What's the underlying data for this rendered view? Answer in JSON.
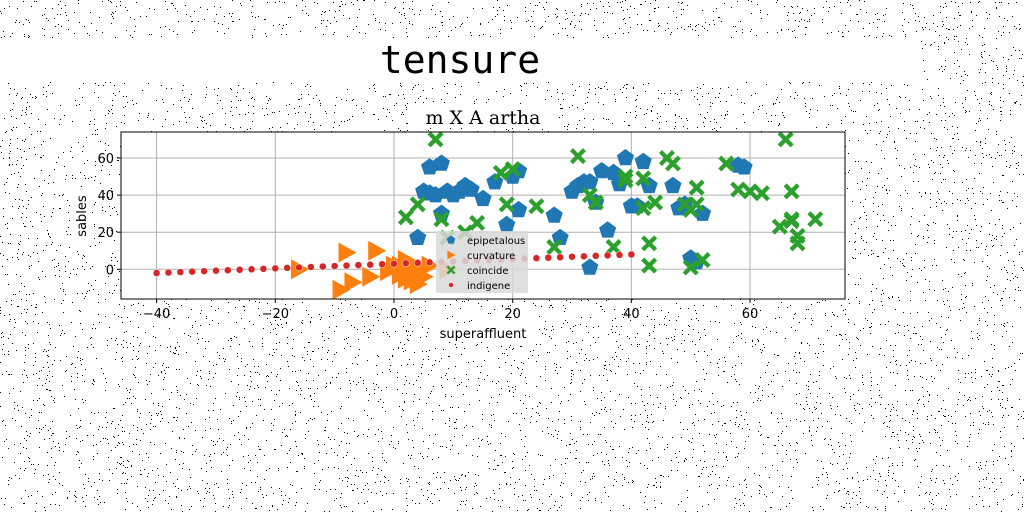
{
  "figure": {
    "suptitle": "tensure"
  },
  "colors": {
    "background": "#ffffff",
    "grid": "#b0b0b0",
    "series": [
      "#1f77b4",
      "#ff7f0e",
      "#2ca02c",
      "#d62728"
    ]
  },
  "chart_data": {
    "type": "scatter",
    "title": "m X A artha",
    "xlabel": "superaffluent",
    "ylabel": "sables",
    "xlim": [
      -46,
      76
    ],
    "ylim": [
      -16,
      74
    ],
    "xticks": [
      -40,
      -20,
      0,
      20,
      40,
      60
    ],
    "xtick_labels": [
      "−40",
      "−20",
      "0",
      "20",
      "40",
      "60"
    ],
    "yticks": [
      0,
      20,
      40,
      60
    ],
    "ytick_labels": [
      "0",
      "20",
      "40",
      "60"
    ],
    "grid": true,
    "legend_position": "center",
    "series": [
      {
        "name": "epipetalous",
        "marker": "pentagon",
        "x": [
          5,
          6,
          7,
          6,
          8,
          9,
          10,
          11,
          12,
          13,
          15,
          17,
          19,
          8,
          20,
          21,
          4,
          21,
          27,
          28,
          30,
          31,
          32,
          33,
          34,
          35,
          36,
          37,
          38,
          39,
          40,
          41,
          42,
          43,
          47,
          48,
          49,
          50,
          51,
          52,
          58,
          59,
          33
        ],
        "y": [
          42,
          41,
          40,
          55,
          57,
          42,
          40,
          42,
          45,
          43,
          38,
          47,
          24,
          30,
          50,
          53,
          17,
          32,
          29,
          17,
          42,
          45,
          47,
          47,
          36,
          53,
          21,
          52,
          46,
          60,
          34,
          34,
          58,
          45,
          45,
          33,
          35,
          6,
          4,
          30,
          56,
          55,
          1
        ]
      },
      {
        "name": "curvature",
        "marker": "triangle-right",
        "x": [
          -16,
          -8,
          -9,
          -7,
          -4,
          -3,
          -1,
          0,
          1,
          2,
          2,
          3,
          4,
          5,
          6,
          3,
          2,
          4,
          1,
          9
        ],
        "y": [
          0,
          9,
          -11,
          -7,
          -4,
          10,
          -1,
          2,
          -3,
          0,
          5,
          -6,
          -8,
          -4,
          2,
          -2,
          -5,
          1,
          2,
          0
        ]
      },
      {
        "name": "coincide",
        "marker": "x",
        "x": [
          7,
          8,
          2,
          4,
          9,
          12,
          14,
          18,
          20,
          19,
          24,
          27,
          31,
          33,
          34,
          37,
          39,
          39,
          42,
          42,
          43,
          44,
          43,
          46,
          47,
          49,
          50,
          51,
          52,
          51,
          56,
          58,
          60,
          62,
          66,
          67,
          65,
          67,
          68,
          71,
          68,
          67,
          50
        ],
        "y": [
          70,
          27,
          28,
          35,
          17,
          20,
          25,
          52,
          54,
          35,
          34,
          12,
          61,
          40,
          36,
          12,
          50,
          48,
          49,
          33,
          14,
          36,
          2,
          60,
          57,
          35,
          32,
          35,
          5,
          44,
          57,
          43,
          42,
          41,
          70,
          42,
          23,
          26,
          18,
          27,
          14,
          27,
          1
        ]
      },
      {
        "name": "indigene",
        "marker": "circle",
        "x": [
          -40,
          -38,
          -36,
          -34,
          -32,
          -30,
          -28,
          -26,
          -24,
          -22,
          -20,
          -18,
          -16,
          -14,
          -12,
          -10,
          -8,
          -6,
          -4,
          -2,
          0,
          2,
          4,
          6,
          8,
          10,
          12,
          14,
          16,
          18,
          20,
          22,
          24,
          26,
          28,
          30,
          32,
          34,
          36,
          38,
          40
        ],
        "y": [
          -2.0,
          -1.75,
          -1.5,
          -1.25,
          -1.0,
          -0.75,
          -0.5,
          -0.25,
          0.0,
          0.25,
          0.5,
          0.75,
          1.0,
          1.25,
          1.5,
          1.75,
          2.0,
          2.25,
          2.5,
          2.75,
          3.0,
          3.25,
          3.5,
          3.75,
          4.0,
          4.25,
          4.5,
          4.75,
          5.0,
          5.25,
          5.5,
          5.75,
          6.0,
          6.25,
          6.5,
          6.75,
          7.0,
          7.25,
          7.5,
          7.75,
          8.0
        ]
      }
    ]
  }
}
